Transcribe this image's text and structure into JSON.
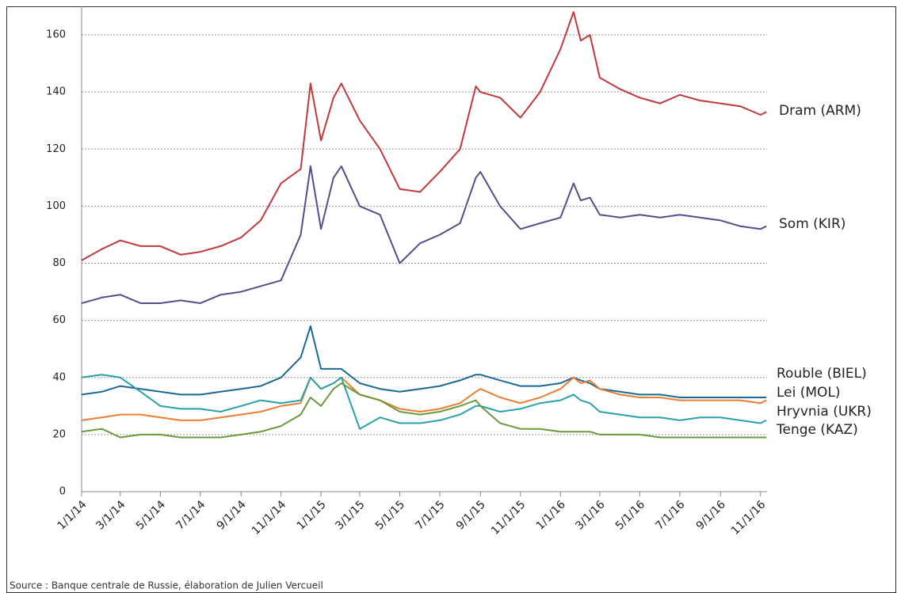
{
  "chart_data": {
    "type": "line",
    "x": [
      "2014-01-01",
      "2014-02-01",
      "2014-03-01",
      "2014-04-01",
      "2014-05-01",
      "2014-06-01",
      "2014-07-01",
      "2014-08-01",
      "2014-09-01",
      "2014-10-01",
      "2014-11-01",
      "2014-12-01",
      "2014-12-16",
      "2015-01-01",
      "2015-01-20",
      "2015-02-01",
      "2015-03-01",
      "2015-04-01",
      "2015-05-01",
      "2015-06-01",
      "2015-07-01",
      "2015-08-01",
      "2015-08-25",
      "2015-09-01",
      "2015-10-01",
      "2015-11-01",
      "2015-12-01",
      "2016-01-01",
      "2016-01-21",
      "2016-02-01",
      "2016-02-15",
      "2016-03-01",
      "2016-04-01",
      "2016-05-01",
      "2016-06-01",
      "2016-07-01",
      "2016-08-01",
      "2016-09-01",
      "2016-10-01",
      "2016-11-01",
      "2016-11-10"
    ],
    "series": [
      {
        "name": "Dram (ARM)",
        "color": "#c0393b",
        "values": [
          81,
          85,
          88,
          86,
          86,
          83,
          84,
          86,
          89,
          95,
          108,
          113,
          143,
          123,
          138,
          143,
          130,
          120,
          106,
          105,
          112,
          120,
          142,
          140,
          138,
          131,
          140,
          155,
          168,
          158,
          160,
          145,
          141,
          138,
          136,
          139,
          137,
          136,
          135,
          132,
          133
        ]
      },
      {
        "name": "Som (KIR)",
        "color": "#5c4a8c",
        "values": [
          66,
          68,
          69,
          66,
          66,
          67,
          66,
          69,
          70,
          72,
          74,
          90,
          114,
          92,
          110,
          114,
          100,
          97,
          80,
          87,
          90,
          94,
          110,
          112,
          100,
          92,
          94,
          96,
          108,
          102,
          103,
          97,
          96,
          97,
          96,
          97,
          96,
          95,
          93,
          92,
          93
        ]
      },
      {
        "name": "Rouble  (BIEL)",
        "color": "#1a6a94",
        "values": [
          34,
          35,
          37,
          36,
          35,
          34,
          34,
          35,
          36,
          37,
          40,
          47,
          58,
          43,
          43,
          43,
          38,
          36,
          35,
          36,
          37,
          39,
          41,
          41,
          39,
          37,
          37,
          38,
          40,
          39,
          38,
          36,
          35,
          34,
          34,
          33,
          33,
          33,
          33,
          33,
          33
        ]
      },
      {
        "name": "Lei (MOL)",
        "color": "#ee7d34",
        "values": [
          25,
          26,
          27,
          27,
          26,
          25,
          25,
          26,
          27,
          28,
          30,
          31,
          40,
          36,
          38,
          40,
          34,
          32,
          29,
          28,
          29,
          31,
          35,
          36,
          33,
          31,
          33,
          36,
          40,
          38,
          39,
          36,
          34,
          33,
          33,
          32,
          32,
          32,
          32,
          31,
          32
        ]
      },
      {
        "name": "Hryvnia (UKR)",
        "color": "#2aa0a8",
        "values": [
          40,
          41,
          40,
          35,
          30,
          29,
          29,
          28,
          30,
          32,
          31,
          32,
          40,
          36,
          38,
          40,
          22,
          26,
          24,
          24,
          25,
          27,
          30,
          30,
          28,
          29,
          31,
          32,
          34,
          32,
          31,
          28,
          27,
          26,
          26,
          25,
          26,
          26,
          25,
          24,
          25
        ]
      },
      {
        "name": "Tenge (KAZ)",
        "color": "#6a9a3c",
        "values": [
          21,
          22,
          19,
          20,
          20,
          19,
          19,
          19,
          20,
          21,
          23,
          27,
          33,
          30,
          36,
          38,
          34,
          32,
          28,
          27,
          28,
          30,
          32,
          30,
          24,
          22,
          22,
          21,
          21,
          21,
          21,
          20,
          20,
          20,
          19,
          19,
          19,
          19,
          19,
          19,
          19
        ]
      }
    ],
    "xlim": [
      "2014-01-01",
      "2016-11-11"
    ],
    "xticks": [
      {
        "value": "2014-01-01",
        "label": "1/1/14"
      },
      {
        "value": "2014-03-01",
        "label": "3/1/14"
      },
      {
        "value": "2014-05-01",
        "label": "5/1/14"
      },
      {
        "value": "2014-07-01",
        "label": "7/1/14"
      },
      {
        "value": "2014-09-01",
        "label": "9/1/14"
      },
      {
        "value": "2014-11-01",
        "label": "11/1/14"
      },
      {
        "value": "2015-01-01",
        "label": "1/1/15"
      },
      {
        "value": "2015-03-01",
        "label": "3/1/15"
      },
      {
        "value": "2015-05-01",
        "label": "5/1/15"
      },
      {
        "value": "2015-07-01",
        "label": "7/1/15"
      },
      {
        "value": "2015-09-01",
        "label": "9/1/15"
      },
      {
        "value": "2015-11-01",
        "label": "11/1/15"
      },
      {
        "value": "2016-01-01",
        "label": "1/1/16"
      },
      {
        "value": "2016-03-01",
        "label": "3/1/16"
      },
      {
        "value": "2016-05-01",
        "label": "5/1/16"
      },
      {
        "value": "2016-07-01",
        "label": "7/1/16"
      },
      {
        "value": "2016-09-01",
        "label": "9/1/16"
      },
      {
        "value": "2016-11-01",
        "label": "11/1/16"
      }
    ],
    "ylim": [
      0,
      170
    ],
    "yticks": [
      0,
      20,
      40,
      60,
      80,
      100,
      120,
      140,
      160
    ],
    "grid": true,
    "source": "Source : Banque centrale de Russie, élaboration de Julien Vercueil"
  }
}
